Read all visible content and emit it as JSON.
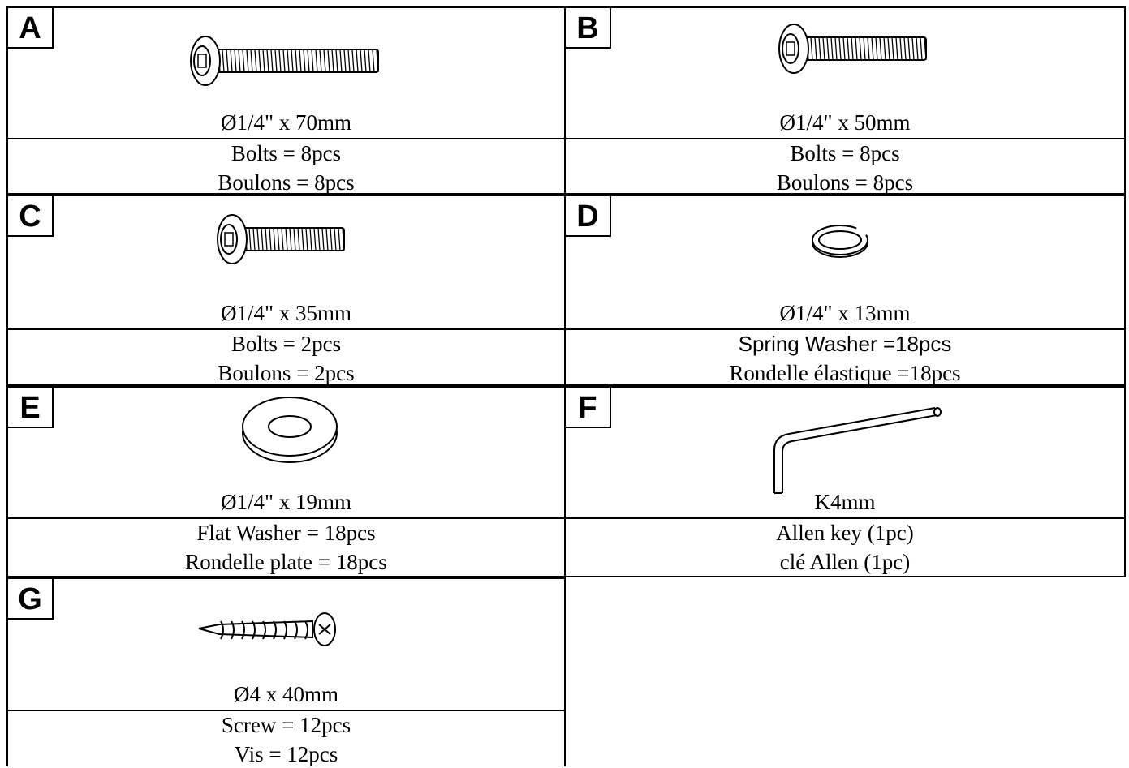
{
  "parts": [
    {
      "letter": "A",
      "size": "Ø1/4\" x 70mm",
      "lines": [
        "Bolts = 8pcs",
        "Boulons = 8pcs"
      ]
    },
    {
      "letter": "B",
      "size": "Ø1/4\" x 50mm",
      "lines": [
        "Bolts = 8pcs",
        "Boulons = 8pcs"
      ]
    },
    {
      "letter": "C",
      "size": "Ø1/4\" x 35mm",
      "lines": [
        "Bolts = 2pcs",
        "Boulons = 2pcs"
      ]
    },
    {
      "letter": "D",
      "size": "Ø1/4\" x 13mm",
      "lines": [
        "Spring Washer =18pcs",
        "Rondelle élastique =18pcs"
      ]
    },
    {
      "letter": "E",
      "size": "Ø1/4\" x 19mm",
      "lines": [
        "Flat Washer = 18pcs",
        "Rondelle plate = 18pcs"
      ]
    },
    {
      "letter": "F",
      "size": "K4mm",
      "lines": [
        "Allen key (1pc)",
        "clé Allen (1pc)"
      ]
    },
    {
      "letter": "G",
      "size": "Ø4 x 40mm",
      "lines": [
        "Screw = 12pcs",
        "Vis = 12pcs"
      ]
    }
  ]
}
